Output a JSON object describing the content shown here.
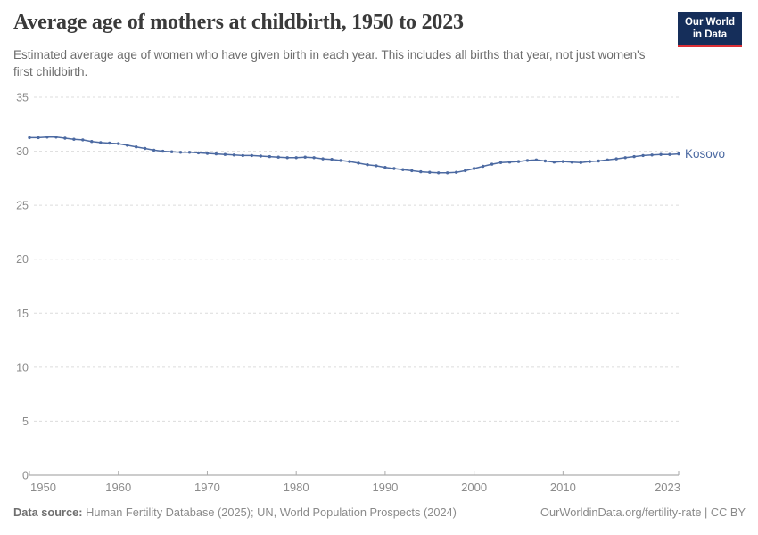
{
  "header": {
    "title": "Average age of mothers at childbirth, 1950 to 2023",
    "subtitle": "Estimated average age of women who have given birth in each year. This includes all births that year, not just women's first childbirth.",
    "logo": {
      "line1": "Our World",
      "line2": "in Data",
      "bg": "#152e5a",
      "accent": "#dc2f36"
    }
  },
  "chart_data": {
    "type": "line",
    "title": "Average age of mothers at childbirth, 1950 to 2023",
    "xlabel": "",
    "ylabel": "",
    "ylim": [
      0,
      35
    ],
    "yticks": [
      0,
      5,
      10,
      15,
      20,
      25,
      30,
      35
    ],
    "xticks": [
      1950,
      1960,
      1970,
      1980,
      1990,
      2000,
      2010,
      2023
    ],
    "grid": "horizontal-dashed",
    "legend_position": "end-of-line-label",
    "x": [
      1950,
      1951,
      1952,
      1953,
      1954,
      1955,
      1956,
      1957,
      1958,
      1959,
      1960,
      1961,
      1962,
      1963,
      1964,
      1965,
      1966,
      1967,
      1968,
      1969,
      1970,
      1971,
      1972,
      1973,
      1974,
      1975,
      1976,
      1977,
      1978,
      1979,
      1980,
      1981,
      1982,
      1983,
      1984,
      1985,
      1986,
      1987,
      1988,
      1989,
      1990,
      1991,
      1992,
      1993,
      1994,
      1995,
      1996,
      1997,
      1998,
      1999,
      2000,
      2001,
      2002,
      2003,
      2004,
      2005,
      2006,
      2007,
      2008,
      2009,
      2010,
      2011,
      2012,
      2013,
      2014,
      2015,
      2016,
      2017,
      2018,
      2019,
      2020,
      2021,
      2022,
      2023
    ],
    "series": [
      {
        "name": "Kosovo",
        "color": "#4c6aa2",
        "values": [
          31.25,
          31.25,
          31.3,
          31.3,
          31.2,
          31.1,
          31.05,
          30.9,
          30.8,
          30.75,
          30.7,
          30.55,
          30.4,
          30.25,
          30.1,
          30.0,
          29.95,
          29.9,
          29.9,
          29.85,
          29.8,
          29.75,
          29.7,
          29.65,
          29.6,
          29.6,
          29.55,
          29.5,
          29.45,
          29.4,
          29.4,
          29.45,
          29.4,
          29.3,
          29.25,
          29.15,
          29.05,
          28.9,
          28.75,
          28.65,
          28.5,
          28.4,
          28.3,
          28.2,
          28.1,
          28.05,
          28.0,
          28.0,
          28.05,
          28.2,
          28.4,
          28.6,
          28.8,
          28.95,
          29.0,
          29.05,
          29.15,
          29.2,
          29.1,
          29.0,
          29.05,
          29.0,
          28.95,
          29.05,
          29.1,
          29.2,
          29.3,
          29.4,
          29.5,
          29.6,
          29.65,
          29.7,
          29.7,
          29.75
        ]
      }
    ]
  },
  "footer": {
    "source_label": "Data source:",
    "source_text": " Human Fertility Database (2025); UN, World Population Prospects (2024)",
    "credit": "OurWorldinData.org/fertility-rate | CC BY"
  }
}
